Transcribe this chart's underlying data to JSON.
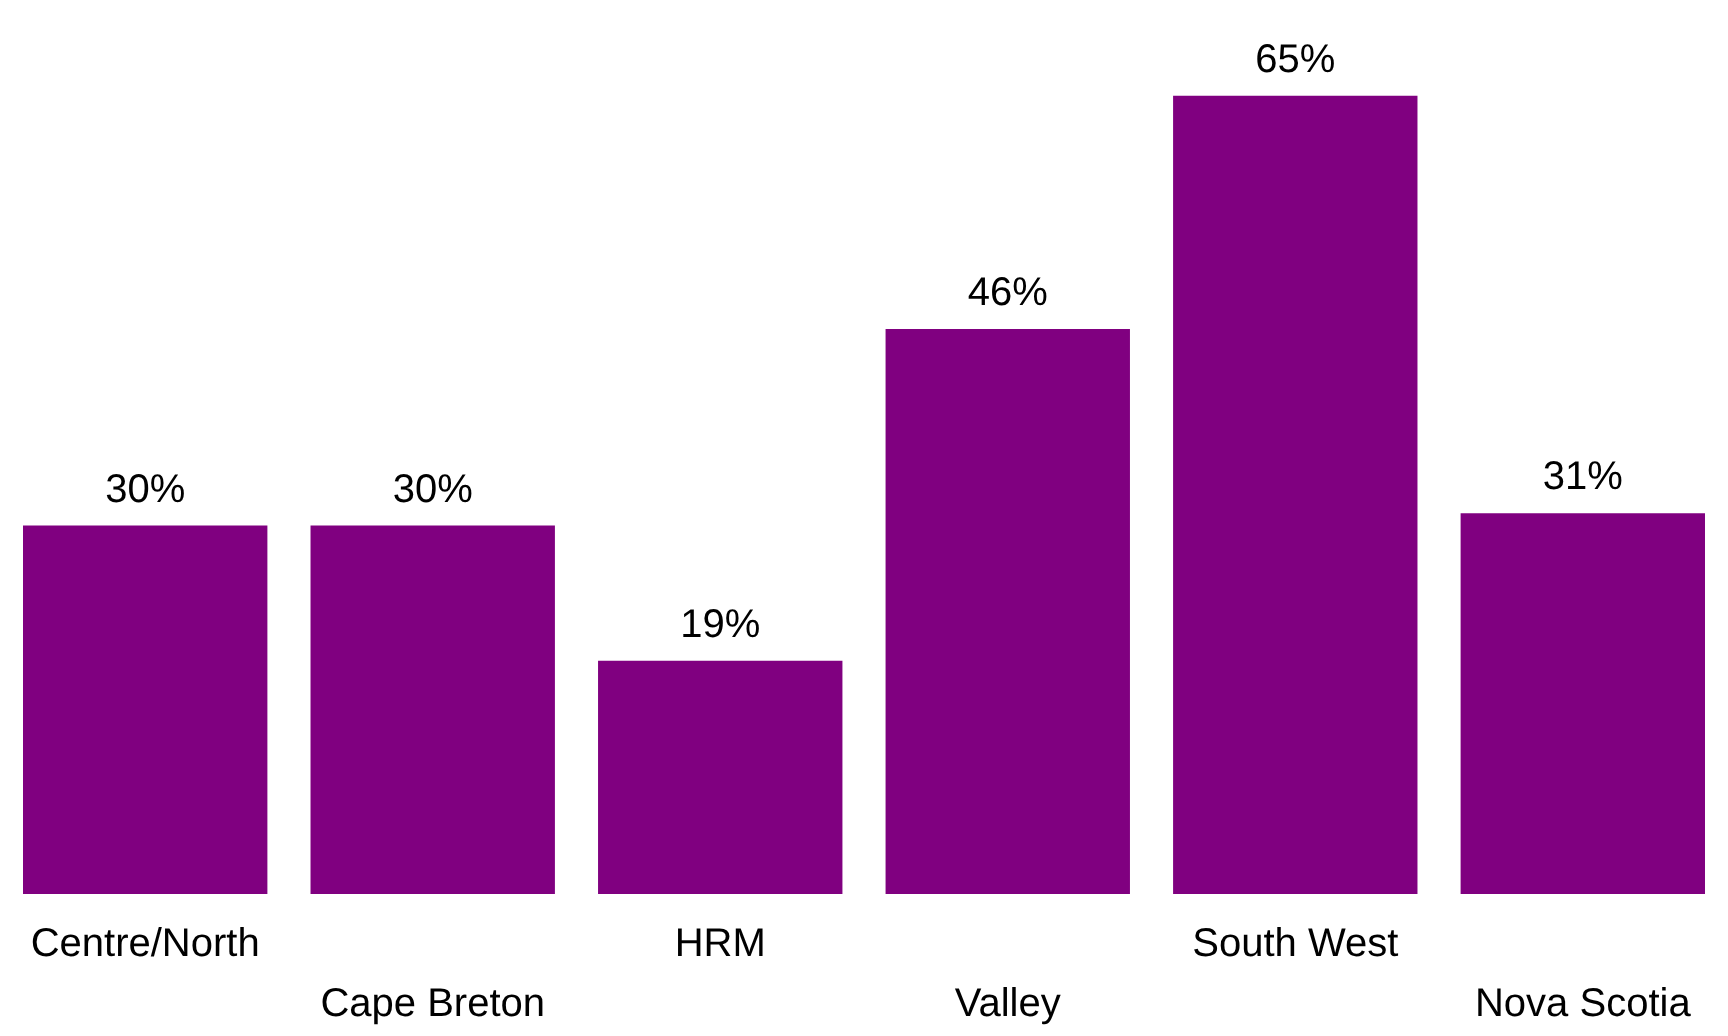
{
  "chart_data": {
    "type": "bar",
    "categories": [
      "Centre/North",
      "Cape Breton",
      "HRM",
      "Valley",
      "South West",
      "Nova Scotia"
    ],
    "values": [
      30,
      30,
      19,
      46,
      65,
      31
    ],
    "value_labels": [
      "30%",
      "30%",
      "19%",
      "46%",
      "65%",
      "31%"
    ],
    "color": "#800080"
  }
}
